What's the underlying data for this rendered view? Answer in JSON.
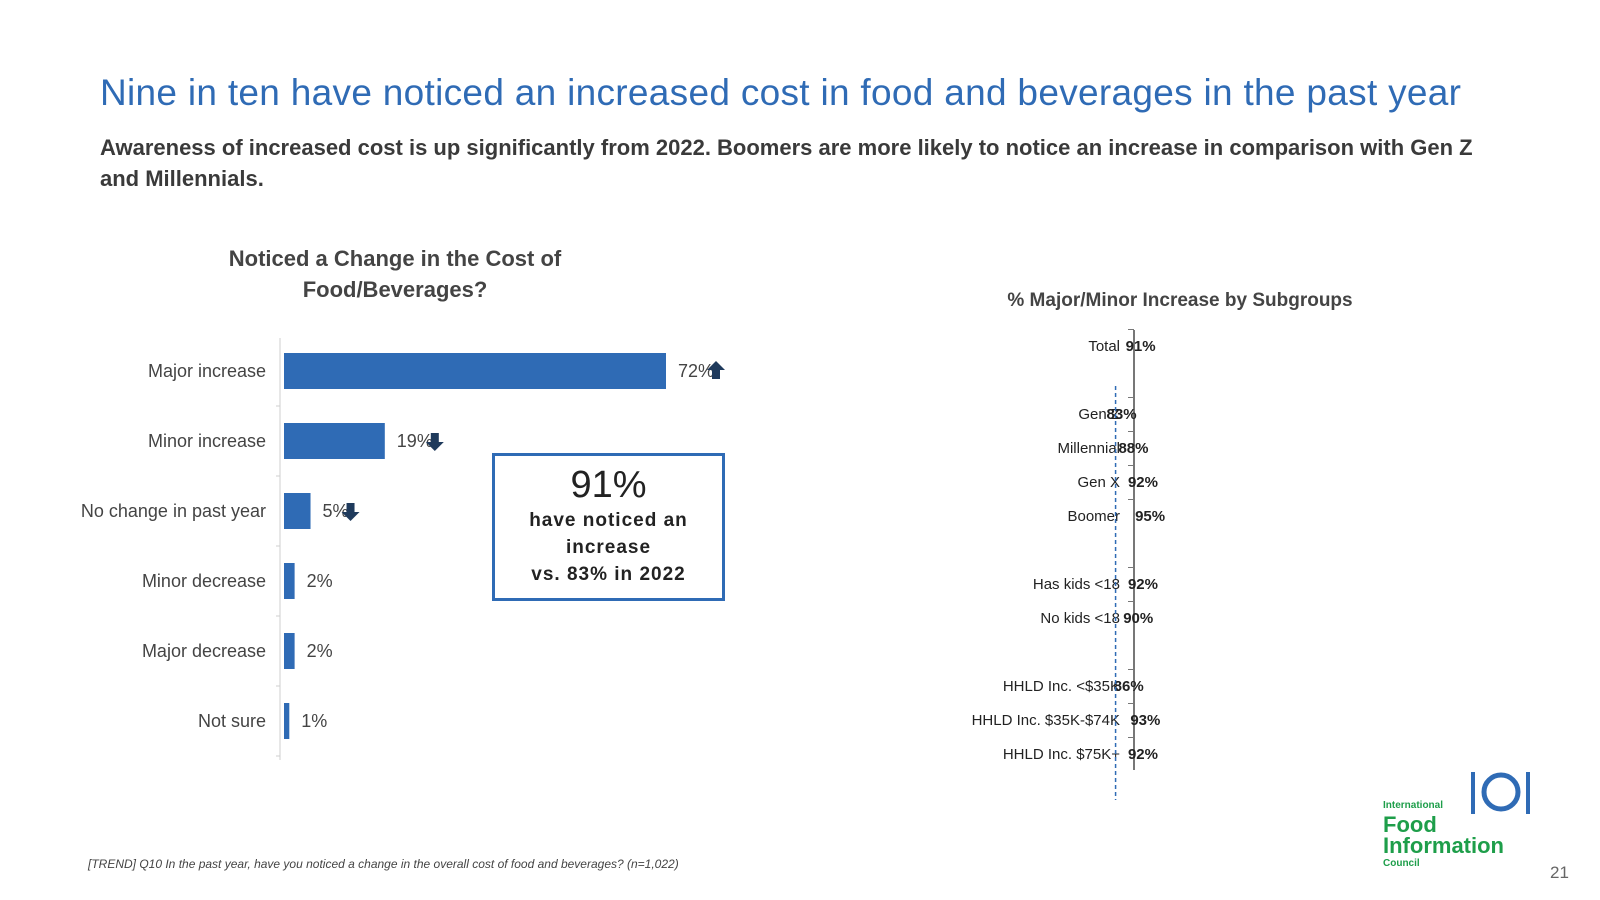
{
  "slide": {
    "title": "Nine in ten have noticed an increased cost in food and beverages in the past year",
    "subtitle": "Awareness of increased cost is up significantly from 2022. Boomers are more likely to notice an increase in comparison with Gen Z and Millennials.",
    "footnote": "[TREND] Q10 In the past year, have you noticed a change in the overall cost of food and beverages? (n=1,022)",
    "page_number": "21"
  },
  "callout": {
    "value": "91%",
    "line1": "have noticed an",
    "line2": "increase",
    "line3": "vs. 83% in 2022"
  },
  "logo": {
    "small": "International",
    "food": "Food",
    "info": "Information",
    "council": "Council",
    "color": "#1e9e4a"
  },
  "colors": {
    "primary_bar": "#2f6bb5",
    "subgroup_bar": "#bfbfbf",
    "arrow": "#1f3a5c"
  },
  "chart_data": [
    {
      "type": "bar",
      "orientation": "horizontal",
      "title": "Noticed a Change in the Cost of Food/Beverages?",
      "categories": [
        "Major increase",
        "Minor increase",
        "No change in past year",
        "Minor decrease",
        "Major decrease",
        "Not sure"
      ],
      "values": [
        72,
        19,
        5,
        2,
        2,
        1
      ],
      "labels": [
        "72%",
        "19%",
        "5%",
        "2%",
        "2%",
        "1%"
      ],
      "trend": [
        "up",
        "down",
        "down",
        "",
        "",
        ""
      ],
      "xlim": [
        0,
        100
      ],
      "grid": false
    },
    {
      "type": "bar",
      "orientation": "horizontal",
      "title": "% Major/Minor Increase by Subgroups",
      "categories": [
        "Total",
        "Gen Z",
        "Millennial",
        "Gen X",
        "Boomer",
        "Has kids <18",
        "No kids <18",
        "HHLD Inc. <$35K",
        "HHLD Inc. $35K-$74K",
        "HHLD Inc. $75K+"
      ],
      "values": [
        91,
        83,
        88,
        92,
        95,
        92,
        90,
        86,
        93,
        92
      ],
      "labels": [
        "91%",
        "83%",
        "88%",
        "92%",
        "95%",
        "92%",
        "90%",
        "86%",
        "93%",
        "92%"
      ],
      "groups": [
        0,
        1,
        1,
        1,
        1,
        2,
        2,
        3,
        3,
        3
      ],
      "reference_line": 91,
      "xlim": [
        50,
        100
      ],
      "grid": false
    }
  ]
}
